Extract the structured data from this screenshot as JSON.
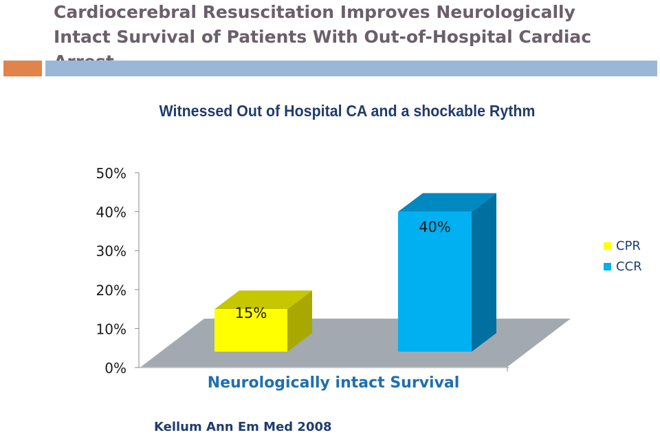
{
  "slide": {
    "title_line1": "Cardiocerebral Resuscitation Improves Neurologically",
    "title_line2": "Intact Survival of Patients With Out-of-Hospital Cardiac Arrest",
    "citation": "Kellum Ann Em Med 2008"
  },
  "colors": {
    "accent_orange": "#e0844a",
    "accent_blue": "#9ab8d5",
    "title": "#6b5f6a"
  },
  "chart_data": {
    "type": "bar",
    "title": "Witnessed Out of Hospital CA and a shockable Rythm",
    "categories": [
      "Neurologically intact Survival"
    ],
    "series": [
      {
        "name": "CPR",
        "values": [
          15
        ],
        "label": "15%",
        "color": "#ffff00",
        "side_color": "#a8a800",
        "top_color": "#c7c700"
      },
      {
        "name": "CCR",
        "values": [
          40
        ],
        "label": "40%",
        "color": "#00b0f0",
        "side_color": "#0070a0",
        "top_color": "#0088c0"
      }
    ],
    "ylim": [
      0,
      50
    ],
    "yticks": [
      "0%",
      "10%",
      "20%",
      "30%",
      "40%",
      "50%"
    ],
    "xlabel": "",
    "ylabel": "",
    "grid": false,
    "legend": "right",
    "chart_style": "3d-column"
  }
}
